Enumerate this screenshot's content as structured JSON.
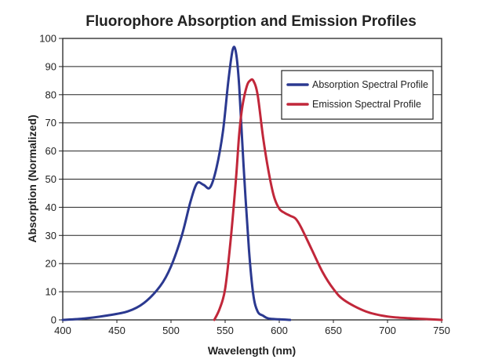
{
  "chart_data": {
    "type": "line",
    "title": "Fluorophore Absorption and Emission Profiles",
    "xlabel": "Wavelength (nm)",
    "ylabel": "Absorption (Normalized)",
    "xlim": [
      400,
      750
    ],
    "ylim": [
      0,
      100
    ],
    "xticks": [
      400,
      450,
      500,
      550,
      600,
      650,
      700,
      750
    ],
    "yticks": [
      0,
      10,
      20,
      30,
      40,
      50,
      60,
      70,
      80,
      90,
      100
    ],
    "grid": "horizontal",
    "legend_position": "top-right",
    "series": [
      {
        "name": "Absorption Spectral Profile",
        "color": "#2b3990",
        "x": [
          400,
          420,
          440,
          460,
          475,
          490,
          500,
          510,
          518,
          524,
          530,
          536,
          542,
          548,
          553,
          557,
          560,
          563,
          567,
          572,
          576,
          580,
          585,
          590,
          600,
          610
        ],
        "y": [
          0,
          0.5,
          1.5,
          3,
          6,
          12,
          19,
          30,
          42,
          48.5,
          48,
          47,
          54,
          67,
          85,
          96,
          95,
          83,
          55,
          25,
          9,
          3,
          1.5,
          0.5,
          0.2,
          0
        ]
      },
      {
        "name": "Emission Spectral Profile",
        "color": "#c1273a",
        "x": [
          540,
          545,
          550,
          555,
          560,
          563,
          566,
          570,
          573,
          576,
          580,
          585,
          590,
          595,
          600,
          605,
          610,
          615,
          620,
          630,
          640,
          650,
          660,
          680,
          700,
          720,
          740,
          750
        ],
        "y": [
          0,
          4,
          11,
          28,
          50,
          66,
          76,
          83,
          85,
          85,
          80,
          65,
          53,
          44,
          39.5,
          38,
          37,
          36,
          33,
          25,
          17,
          11,
          7,
          3,
          1.2,
          0.6,
          0.2,
          0
        ]
      }
    ]
  }
}
